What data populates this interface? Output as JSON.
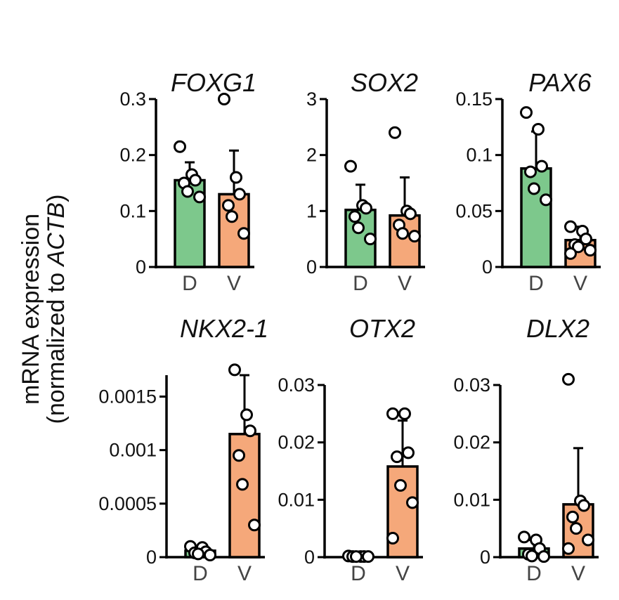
{
  "figure": {
    "ylabel_line1": "mRNA expression",
    "ylabel_line2_prefix": "(normalized to ",
    "ylabel_line2_gene": "ACTB",
    "ylabel_line2_suffix": ")",
    "bar_colors": {
      "D": "#7dc88c",
      "V": "#f5a87a"
    }
  },
  "chart_data": [
    {
      "type": "bar",
      "title": "FOXG1",
      "categories": [
        "D",
        "V"
      ],
      "values": [
        0.155,
        0.13
      ],
      "sd": [
        0.032,
        0.078
      ],
      "points": [
        [
          0.215,
          0.165,
          0.155,
          0.15,
          0.135,
          0.125
        ],
        [
          0.3,
          0.16,
          0.13,
          0.11,
          0.09,
          0.06
        ]
      ],
      "ylim": [
        0,
        0.3
      ],
      "yticks": [
        0,
        0.1,
        0.2,
        0.3
      ],
      "ytick_labels": [
        "0",
        "0.1",
        "0.2",
        "0.3"
      ]
    },
    {
      "type": "bar",
      "title": "SOX2",
      "categories": [
        "D",
        "V"
      ],
      "values": [
        1.02,
        0.92
      ],
      "sd": [
        0.45,
        0.68
      ],
      "points": [
        [
          1.8,
          1.1,
          1.05,
          0.9,
          0.7,
          0.5
        ],
        [
          2.4,
          1.0,
          0.95,
          0.75,
          0.6,
          0.55
        ]
      ],
      "ylim": [
        0,
        3
      ],
      "yticks": [
        0,
        1,
        2,
        3
      ],
      "ytick_labels": [
        "0",
        "1",
        "2",
        "3"
      ]
    },
    {
      "type": "bar",
      "title": "PAX6",
      "categories": [
        "D",
        "V"
      ],
      "values": [
        0.088,
        0.024
      ],
      "sd": [
        0.033,
        0.012
      ],
      "points": [
        [
          0.138,
          0.123,
          0.09,
          0.085,
          0.07,
          0.06
        ],
        [
          0.036,
          0.032,
          0.025,
          0.02,
          0.018,
          0.015,
          0.012
        ]
      ],
      "ylim": [
        0,
        0.15
      ],
      "yticks": [
        0,
        0.05,
        0.1,
        0.15
      ],
      "ytick_labels": [
        "0",
        "0.05",
        "0.1",
        "0.15"
      ]
    },
    {
      "type": "bar",
      "title": "NKX2-1",
      "categories": [
        "D",
        "V"
      ],
      "values": [
        6e-05,
        0.00115
      ],
      "sd": [
        3e-05,
        0.00055
      ],
      "points": [
        [
          0.0001,
          9e-05,
          5e-05,
          4e-05,
          3e-05,
          2e-05
        ],
        [
          0.00175,
          0.00133,
          0.00118,
          0.00095,
          0.00068,
          0.0003
        ]
      ],
      "ylim": [
        0,
        0.0017
      ],
      "yticks": [
        0,
        0.0005,
        0.001,
        0.0015
      ],
      "ytick_labels": [
        "0",
        "0.0005",
        "0.001",
        "0.0015"
      ]
    },
    {
      "type": "bar",
      "title": "OTX2",
      "categories": [
        "D",
        "V"
      ],
      "values": [
        0.0001,
        0.0158
      ],
      "sd": [
        5e-05,
        0.008
      ],
      "points": [
        [
          0.0002,
          0.0001,
          0.0001,
          0.0001,
          0.0001,
          0.0001
        ],
        [
          0.025,
          0.025,
          0.0182,
          0.0175,
          0.0125,
          0.0095,
          0.0033
        ]
      ],
      "ylim": [
        0,
        0.03
      ],
      "yticks": [
        0,
        0.01,
        0.02,
        0.03
      ],
      "ytick_labels": [
        "0",
        "0.01",
        "0.02",
        "0.03"
      ]
    },
    {
      "type": "bar",
      "title": "DLX2",
      "categories": [
        "D",
        "V"
      ],
      "values": [
        0.0015,
        0.0092
      ],
      "sd": [
        0.0015,
        0.0098
      ],
      "points": [
        [
          0.0035,
          0.003,
          0.0015,
          0.0005,
          0.0002,
          0.0001
        ],
        [
          0.031,
          0.0098,
          0.009,
          0.007,
          0.005,
          0.003,
          0.0015
        ]
      ],
      "ylim": [
        0,
        0.03
      ],
      "yticks": [
        0,
        0.01,
        0.02,
        0.03
      ],
      "ytick_labels": [
        "0",
        "0.01",
        "0.02",
        "0.03"
      ]
    }
  ]
}
